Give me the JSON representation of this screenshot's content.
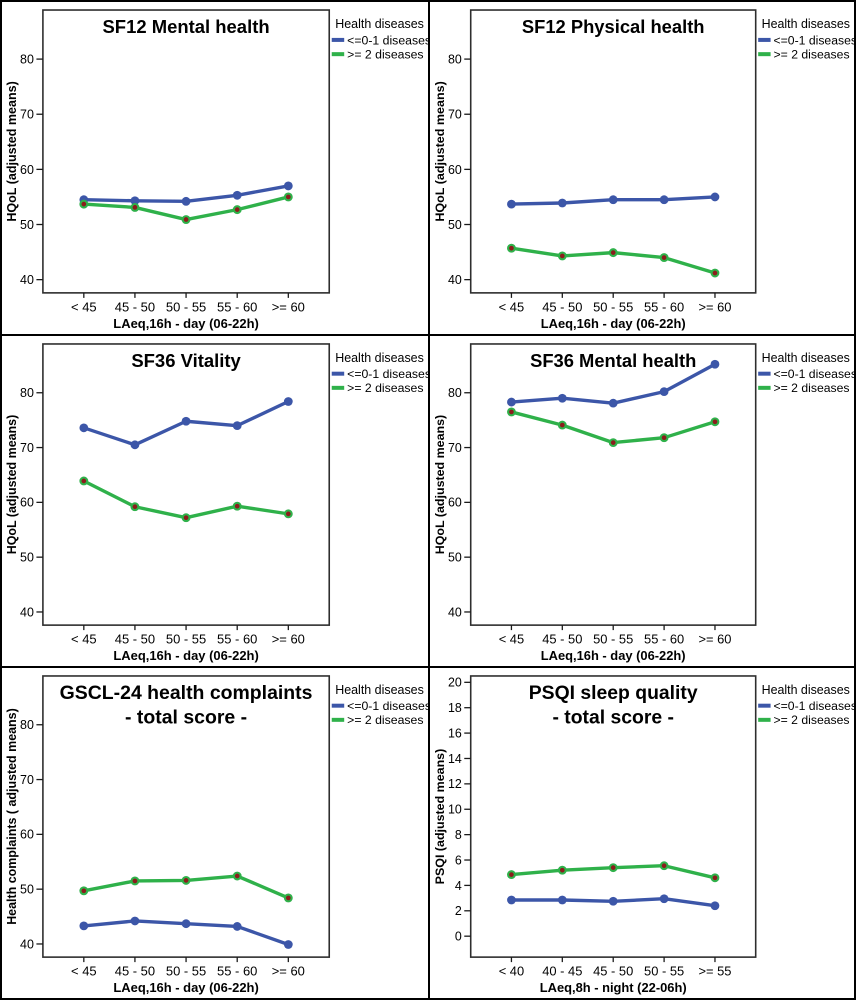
{
  "figure": {
    "background": "#ffffff",
    "frame_color": "#000000",
    "plot_border_color": "#2e2e2e",
    "tick_color": "#1a1a1a"
  },
  "legend": {
    "title": "Health diseases"
  },
  "chart_data": [
    {
      "type": "line",
      "title_lines": [
        "SF12 Mental health"
      ],
      "xlabel": "LAeq,16h - day (06-22h)",
      "ylabel": "HQoL (adjusted means)",
      "categories": [
        "< 45",
        "45 - 50",
        "50 - 55",
        "55 - 60",
        ">= 60"
      ],
      "yticks": [
        40,
        50,
        60,
        70,
        80
      ],
      "ylim": [
        37.6,
        88.9
      ],
      "grid": false,
      "legend_position": "top-right-outside",
      "series": [
        {
          "name": "<=0-1 diseases",
          "color": "#3C56A8",
          "marker_fill": "#3C56A8",
          "values": [
            54.5,
            54.3,
            54.2,
            55.3,
            57.0
          ]
        },
        {
          "name": ">= 2 diseases",
          "color": "#2FB14A",
          "marker_fill": "#8C1C1C",
          "marker_ring": "#2FB14A",
          "values": [
            53.7,
            53.1,
            50.9,
            52.7,
            55.0
          ]
        }
      ]
    },
    {
      "type": "line",
      "title_lines": [
        "SF12 Physical health"
      ],
      "xlabel": "LAeq,16h - day (06-22h)",
      "ylabel": "HQoL (adjusted means)",
      "categories": [
        "< 45",
        "45 - 50",
        "50 - 55",
        "55 - 60",
        ">= 60"
      ],
      "yticks": [
        40,
        50,
        60,
        70,
        80
      ],
      "ylim": [
        37.6,
        88.9
      ],
      "grid": false,
      "legend_position": "top-right-outside",
      "series": [
        {
          "name": "<=0-1 diseases",
          "color": "#3C56A8",
          "marker_fill": "#3C56A8",
          "values": [
            53.7,
            53.9,
            54.5,
            54.5,
            55.0
          ]
        },
        {
          "name": ">= 2 diseases",
          "color": "#2FB14A",
          "marker_fill": "#8C1C1C",
          "marker_ring": "#2FB14A",
          "values": [
            45.7,
            44.3,
            44.9,
            44.0,
            41.2
          ]
        }
      ]
    },
    {
      "type": "line",
      "title_lines": [
        "SF36 Vitality"
      ],
      "xlabel": "LAeq,16h - day (06-22h)",
      "ylabel": "HQoL (adjusted means)",
      "categories": [
        "< 45",
        "45 - 50",
        "50 - 55",
        "55 - 60",
        ">= 60"
      ],
      "yticks": [
        40,
        50,
        60,
        70,
        80
      ],
      "ylim": [
        37.6,
        88.9
      ],
      "grid": false,
      "legend_position": "top-right-outside",
      "series": [
        {
          "name": "<=0-1 diseases",
          "color": "#3C56A8",
          "marker_fill": "#3C56A8",
          "values": [
            73.6,
            70.5,
            74.8,
            74.0,
            78.4
          ]
        },
        {
          "name": ">= 2 diseases",
          "color": "#2FB14A",
          "marker_fill": "#8C1C1C",
          "marker_ring": "#2FB14A",
          "values": [
            63.9,
            59.2,
            57.2,
            59.3,
            57.9
          ]
        }
      ]
    },
    {
      "type": "line",
      "title_lines": [
        "SF36 Mental health"
      ],
      "xlabel": "LAeq,16h - day (06-22h)",
      "ylabel": "HQoL (adjusted means)",
      "categories": [
        "< 45",
        "45 - 50",
        "50 - 55",
        "55 - 60",
        ">= 60"
      ],
      "yticks": [
        40,
        50,
        60,
        70,
        80
      ],
      "ylim": [
        37.6,
        88.9
      ],
      "grid": false,
      "legend_position": "top-right-outside",
      "series": [
        {
          "name": "<=0-1 diseases",
          "color": "#3C56A8",
          "marker_fill": "#3C56A8",
          "values": [
            78.3,
            79.0,
            78.1,
            80.2,
            85.2
          ]
        },
        {
          "name": ">= 2 diseases",
          "color": "#2FB14A",
          "marker_fill": "#8C1C1C",
          "marker_ring": "#2FB14A",
          "values": [
            76.5,
            74.1,
            70.9,
            71.8,
            74.7
          ]
        }
      ]
    },
    {
      "type": "line",
      "title_lines": [
        "GSCL-24 health complaints",
        "- total score -"
      ],
      "xlabel": "LAeq,16h - day (06-22h)",
      "ylabel": "Health complaints ( adjusted means)",
      "categories": [
        "< 45",
        "45 - 50",
        "50 - 55",
        "55 - 60",
        ">= 60"
      ],
      "yticks": [
        40,
        50,
        60,
        70,
        80
      ],
      "ylim": [
        37.6,
        88.9
      ],
      "grid": false,
      "legend_position": "top-right-outside",
      "series": [
        {
          "name": "<=0-1 diseases",
          "color": "#3C56A8",
          "marker_fill": "#3C56A8",
          "values": [
            43.3,
            44.2,
            43.7,
            43.2,
            39.9
          ]
        },
        {
          "name": ">= 2 diseases",
          "color": "#2FB14A",
          "marker_fill": "#8C1C1C",
          "marker_ring": "#2FB14A",
          "values": [
            49.7,
            51.5,
            51.6,
            52.4,
            48.4
          ]
        }
      ]
    },
    {
      "type": "line",
      "title_lines": [
        "PSQI sleep quality",
        "- total score -"
      ],
      "xlabel": "LAeq,8h - night (22-06h)",
      "ylabel": "PSQI (adjusted means)",
      "categories": [
        "< 40",
        "40 - 45",
        "45 - 50",
        "50 - 55",
        ">= 55"
      ],
      "yticks": [
        0,
        2,
        4,
        6,
        8,
        10,
        12,
        14,
        16,
        18,
        20
      ],
      "ylim": [
        -1.65,
        20.5
      ],
      "grid": false,
      "legend_position": "top-right-outside",
      "series": [
        {
          "name": "<=0-1 diseases",
          "color": "#3C56A8",
          "marker_fill": "#3C56A8",
          "values": [
            2.85,
            2.85,
            2.75,
            2.95,
            2.4
          ]
        },
        {
          "name": ">= 2 diseases",
          "color": "#2FB14A",
          "marker_fill": "#8C1C1C",
          "marker_ring": "#2FB14A",
          "values": [
            4.85,
            5.2,
            5.4,
            5.55,
            4.6
          ]
        }
      ]
    }
  ]
}
